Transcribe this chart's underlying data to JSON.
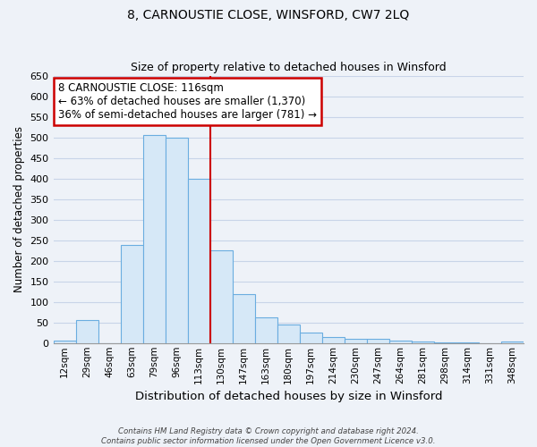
{
  "title": "8, CARNOUSTIE CLOSE, WINSFORD, CW7 2LQ",
  "subtitle": "Size of property relative to detached houses in Winsford",
  "xlabel": "Distribution of detached houses by size in Winsford",
  "ylabel": "Number of detached properties",
  "bin_labels": [
    "12sqm",
    "29sqm",
    "46sqm",
    "63sqm",
    "79sqm",
    "96sqm",
    "113sqm",
    "130sqm",
    "147sqm",
    "163sqm",
    "180sqm",
    "197sqm",
    "214sqm",
    "230sqm",
    "247sqm",
    "264sqm",
    "281sqm",
    "298sqm",
    "314sqm",
    "331sqm",
    "348sqm"
  ],
  "bar_heights": [
    5,
    57,
    0,
    238,
    505,
    500,
    400,
    225,
    120,
    62,
    45,
    25,
    15,
    10,
    10,
    5,
    3,
    2,
    1,
    0,
    3
  ],
  "bar_color": "#d6e8f7",
  "bar_edge_color": "#6aade0",
  "property_line_x": 6.5,
  "property_line_color": "#cc0000",
  "annotation_text": "8 CARNOUSTIE CLOSE: 116sqm\n← 63% of detached houses are smaller (1,370)\n36% of semi-detached houses are larger (781) →",
  "annotation_box_color": "#ffffff",
  "annotation_box_edge_color": "#cc0000",
  "ylim": [
    0,
    650
  ],
  "yticks": [
    0,
    50,
    100,
    150,
    200,
    250,
    300,
    350,
    400,
    450,
    500,
    550,
    600,
    650
  ],
  "footer_line1": "Contains HM Land Registry data © Crown copyright and database right 2024.",
  "footer_line2": "Contains public sector information licensed under the Open Government Licence v3.0.",
  "bg_color": "#eef2f8",
  "plot_bg_color": "#eef2f8",
  "grid_color": "#c8d4e8",
  "annotation_fontsize": 8.5,
  "title_fontsize": 10,
  "subtitle_fontsize": 9
}
